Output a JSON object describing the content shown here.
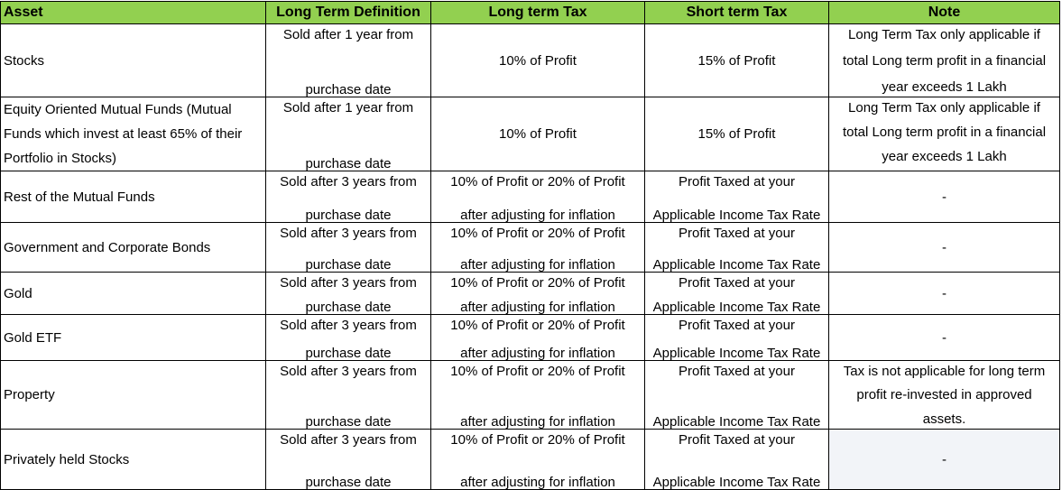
{
  "headers": [
    "Asset",
    "Long Term Definition",
    "Long term Tax",
    "Short term Tax",
    "Note"
  ],
  "rows": [
    {
      "asset": "Stocks",
      "def_top": "Sold after 1 year from",
      "def_bottom": "purchase date",
      "lt": "10% of Profit",
      "st": "15% of Profit",
      "note": [
        "Long Term Tax only applicable if",
        "total Long term profit in a financial",
        "year exceeds 1 Lakh"
      ]
    },
    {
      "asset_lines": [
        "Equity Oriented Mutual Funds (Mutual",
        "Funds which invest at least 65% of their",
        "Portfolio in Stocks)"
      ],
      "def_top": "Sold after 1 year from",
      "def_bottom": "purchase date",
      "lt": "10% of Profit",
      "st": "15% of Profit",
      "note": [
        "Long Term Tax only applicable if",
        "total Long term profit in a financial",
        "year exceeds 1 Lakh"
      ]
    },
    {
      "asset": "Rest of the Mutual Funds",
      "def_top": "Sold after 3 years from",
      "def_bottom": "purchase date",
      "lt_top": "10% of Profit or 20% of Profit",
      "lt_bottom": "after adjusting for inflation",
      "st_top": "Profit Taxed at your",
      "st_bottom": "Applicable Income Tax Rate",
      "note_single": "-"
    },
    {
      "asset": "Government and Corporate Bonds",
      "def_top": "Sold after 3 years from",
      "def_bottom": "purchase date",
      "lt_top": "10% of Profit or 20% of Profit",
      "lt_bottom": "after adjusting for inflation",
      "st_top": "Profit Taxed at your",
      "st_bottom": "Applicable Income Tax Rate",
      "note_single": "-"
    },
    {
      "asset": "Gold",
      "def_top": "Sold after 3 years from",
      "def_bottom": "purchase date",
      "lt_top": "10% of Profit or 20% of Profit",
      "lt_bottom": "after adjusting for inflation",
      "st_top": "Profit Taxed at your",
      "st_bottom": "Applicable Income Tax Rate",
      "note_single": "-"
    },
    {
      "asset": "Gold ETF",
      "def_top": "Sold after 3 years from",
      "def_bottom": "purchase date",
      "lt_top": "10% of Profit or 20% of Profit",
      "lt_bottom": "after adjusting for inflation",
      "st_top": "Profit Taxed at your",
      "st_bottom": "Applicable Income Tax Rate",
      "note_single": "-"
    },
    {
      "asset": "Property",
      "def_top": "Sold after 3 years from",
      "def_bottom": "purchase date",
      "lt_top": "10% of Profit or 20% of Profit",
      "lt_bottom": "after adjusting for inflation",
      "st_top": "Profit Taxed at your",
      "st_bottom": "Applicable Income Tax Rate",
      "note": [
        "Tax is not applicable for long term",
        "profit re-invested in approved",
        "assets."
      ]
    },
    {
      "asset": "Privately held Stocks",
      "def_top": "Sold after 3 years from",
      "def_bottom": "purchase date",
      "lt_top": "10% of Profit or 20% of Profit",
      "lt_bottom": "after adjusting for inflation",
      "st_top": "Profit Taxed at your",
      "st_bottom": "Applicable Income Tax Rate",
      "note_single": "-"
    }
  ]
}
